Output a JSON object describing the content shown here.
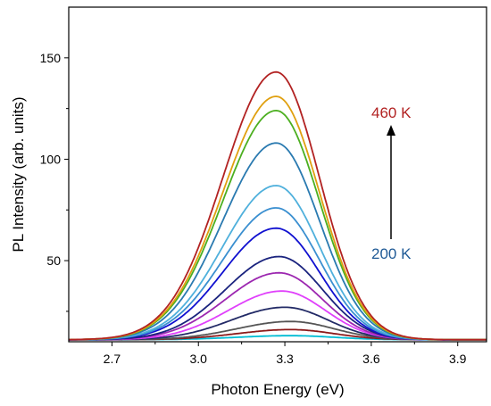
{
  "chart_data": {
    "type": "line",
    "xlabel": "Photon Energy (eV)",
    "ylabel": "PL Intensity (arb. units)",
    "xlim": [
      2.55,
      4.0
    ],
    "ylim": [
      10,
      175
    ],
    "x_ticks": [
      "2.7",
      "3.0",
      "3.3",
      "3.6",
      "3.9"
    ],
    "y_ticks": [
      "50",
      "100",
      "150"
    ],
    "baseline": 11,
    "annotations": {
      "top_label": "460 K",
      "bottom_label": "200 K",
      "top_color": "#b22222",
      "bottom_color": "#1f5a96"
    },
    "series": [
      {
        "color": "#00bcd4",
        "peak_x": 3.32,
        "peak_y": 13
      },
      {
        "color": "#8b1a1a",
        "peak_x": 3.32,
        "peak_y": 16
      },
      {
        "color": "#555555",
        "peak_x": 3.32,
        "peak_y": 20
      },
      {
        "color": "#222a66",
        "peak_x": 3.3,
        "peak_y": 27
      },
      {
        "color": "#e040fb",
        "peak_x": 3.29,
        "peak_y": 35
      },
      {
        "color": "#9c27b0",
        "peak_x": 3.28,
        "peak_y": 44
      },
      {
        "color": "#1a237e",
        "peak_x": 3.28,
        "peak_y": 52
      },
      {
        "color": "#1010d0",
        "peak_x": 3.27,
        "peak_y": 66
      },
      {
        "color": "#3a8fd0",
        "peak_x": 3.27,
        "peak_y": 76
      },
      {
        "color": "#4fb0dc",
        "peak_x": 3.27,
        "peak_y": 87
      },
      {
        "color": "#2a7ab0",
        "peak_x": 3.27,
        "peak_y": 108
      },
      {
        "color": "#4caf20",
        "peak_x": 3.27,
        "peak_y": 124
      },
      {
        "color": "#e0a010",
        "peak_x": 3.27,
        "peak_y": 131
      },
      {
        "color": "#b22222",
        "peak_x": 3.27,
        "peak_y": 143
      }
    ]
  }
}
